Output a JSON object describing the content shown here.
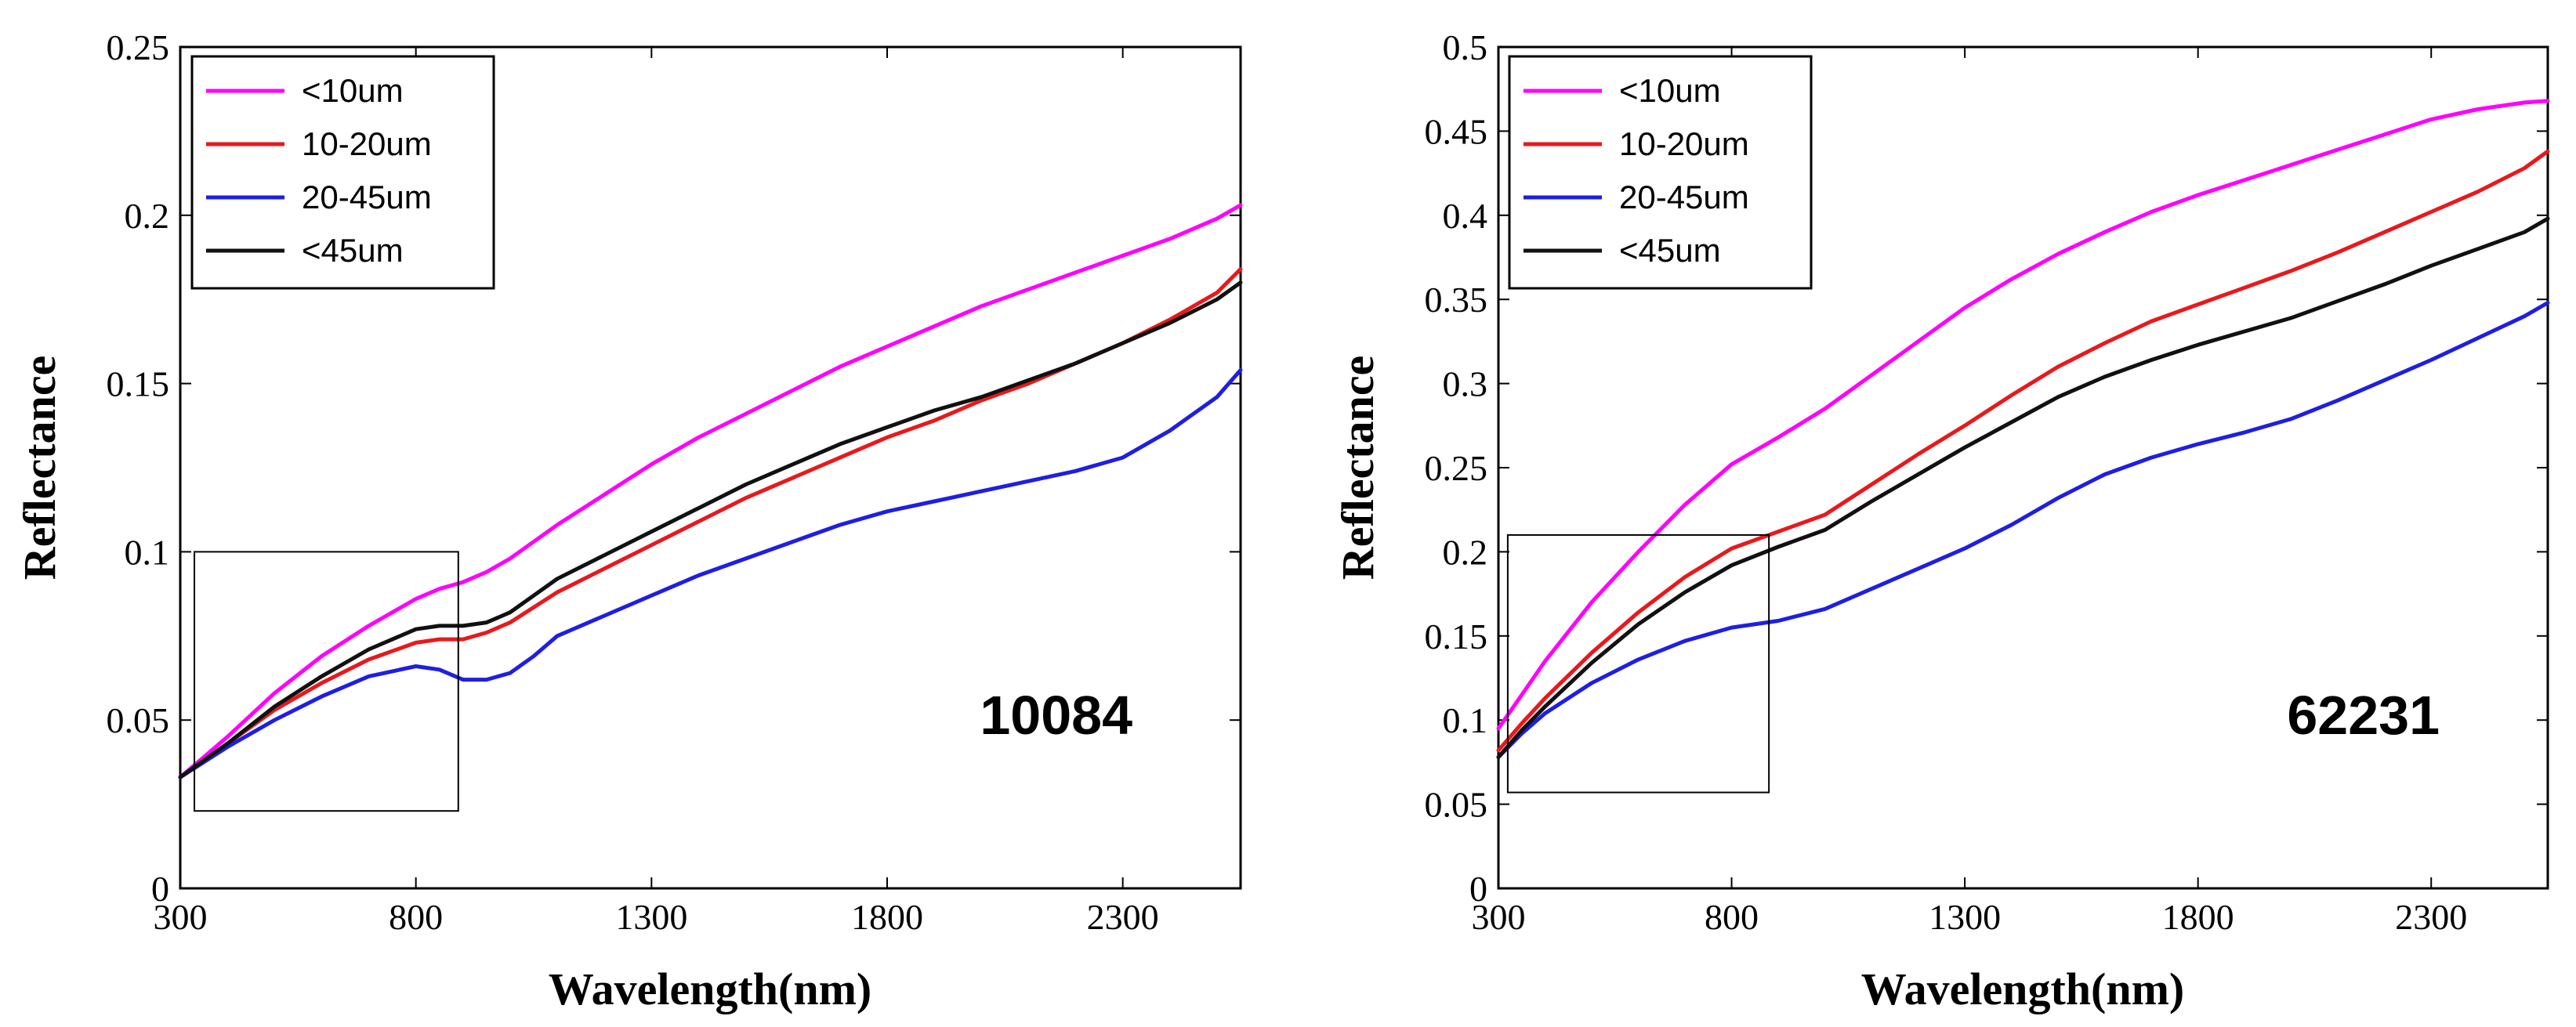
{
  "figure": {
    "title": ""
  },
  "chart_data": [
    {
      "type": "line",
      "title": "",
      "annotation": "10084",
      "xlabel": "Wavelength(nm)",
      "ylabel": "Reflectance",
      "xlim": [
        300,
        2550
      ],
      "ylim": [
        0,
        0.25
      ],
      "xticks": [
        300,
        800,
        1300,
        1800,
        2300
      ],
      "xtick_labels": [
        "300",
        "800",
        "1300",
        "1800",
        "2300"
      ],
      "yticks": [
        0,
        0.05,
        0.1,
        0.15,
        0.2,
        0.25
      ],
      "ytick_labels": [
        "0",
        "0.05",
        "0.1",
        "0.15",
        "0.2",
        "0.25"
      ],
      "legend_position": "top-left",
      "highlight_box": {
        "x": [
          330,
          890
        ],
        "y": [
          0.023,
          0.1
        ]
      },
      "series": [
        {
          "name": "<10um",
          "color": "#ff00ff",
          "x": [
            300,
            400,
            500,
            600,
            700,
            800,
            850,
            900,
            950,
            1000,
            1100,
            1200,
            1300,
            1400,
            1500,
            1600,
            1700,
            1800,
            1900,
            2000,
            2100,
            2200,
            2300,
            2400,
            2500,
            2550
          ],
          "y": [
            0.033,
            0.045,
            0.058,
            0.069,
            0.078,
            0.086,
            0.089,
            0.091,
            0.094,
            0.098,
            0.108,
            0.117,
            0.126,
            0.134,
            0.141,
            0.148,
            0.155,
            0.161,
            0.167,
            0.173,
            0.178,
            0.183,
            0.188,
            0.193,
            0.199,
            0.203
          ]
        },
        {
          "name": "10-20um",
          "color": "#e8191c",
          "x": [
            300,
            400,
            500,
            600,
            700,
            800,
            850,
            900,
            950,
            1000,
            1100,
            1200,
            1300,
            1400,
            1500,
            1600,
            1700,
            1800,
            1900,
            2000,
            2100,
            2200,
            2300,
            2400,
            2500,
            2550
          ],
          "y": [
            0.033,
            0.043,
            0.053,
            0.061,
            0.068,
            0.073,
            0.074,
            0.074,
            0.076,
            0.079,
            0.088,
            0.095,
            0.102,
            0.109,
            0.116,
            0.122,
            0.128,
            0.134,
            0.139,
            0.145,
            0.15,
            0.156,
            0.162,
            0.169,
            0.177,
            0.184
          ]
        },
        {
          "name": "20-45um",
          "color": "#1f1fe0",
          "x": [
            300,
            400,
            500,
            600,
            700,
            800,
            850,
            900,
            950,
            1000,
            1050,
            1100,
            1200,
            1300,
            1400,
            1500,
            1600,
            1700,
            1800,
            1900,
            2000,
            2100,
            2200,
            2300,
            2400,
            2500,
            2550
          ],
          "y": [
            0.033,
            0.042,
            0.05,
            0.057,
            0.063,
            0.066,
            0.065,
            0.062,
            0.062,
            0.064,
            0.069,
            0.075,
            0.081,
            0.087,
            0.093,
            0.098,
            0.103,
            0.108,
            0.112,
            0.115,
            0.118,
            0.121,
            0.124,
            0.128,
            0.136,
            0.146,
            0.154
          ]
        },
        {
          "name": "<45um",
          "color": "#111111",
          "x": [
            300,
            400,
            500,
            600,
            700,
            800,
            850,
            900,
            950,
            1000,
            1100,
            1200,
            1300,
            1400,
            1500,
            1600,
            1700,
            1800,
            1900,
            2000,
            2100,
            2200,
            2300,
            2400,
            2500,
            2550
          ],
          "y": [
            0.033,
            0.043,
            0.054,
            0.063,
            0.071,
            0.077,
            0.078,
            0.078,
            0.079,
            0.082,
            0.092,
            0.099,
            0.106,
            0.113,
            0.12,
            0.126,
            0.132,
            0.137,
            0.142,
            0.146,
            0.151,
            0.156,
            0.162,
            0.168,
            0.175,
            0.18
          ]
        }
      ]
    },
    {
      "type": "line",
      "title": "",
      "annotation": "62231",
      "xlabel": "Wavelength(nm)",
      "ylabel": "Reflectance",
      "xlim": [
        300,
        2550
      ],
      "ylim": [
        0,
        0.5
      ],
      "xticks": [
        300,
        800,
        1300,
        1800,
        2300
      ],
      "xtick_labels": [
        "300",
        "800",
        "1300",
        "1800",
        "2300"
      ],
      "yticks": [
        0,
        0.05,
        0.1,
        0.15,
        0.2,
        0.25,
        0.3,
        0.35,
        0.4,
        0.45,
        0.5
      ],
      "ytick_labels": [
        "0",
        "0.05",
        "0.1",
        "0.15",
        "0.2",
        "0.25",
        "0.3",
        "0.35",
        "0.4",
        "0.45",
        "0.5"
      ],
      "legend_position": "top-left",
      "highlight_box": {
        "x": [
          320,
          880
        ],
        "y": [
          0.057,
          0.21
        ]
      },
      "series": [
        {
          "name": "<10um",
          "color": "#ff00ff",
          "x": [
            300,
            350,
            400,
            500,
            600,
            700,
            800,
            900,
            1000,
            1100,
            1200,
            1300,
            1400,
            1500,
            1600,
            1700,
            1800,
            1900,
            2000,
            2100,
            2200,
            2300,
            2400,
            2500,
            2550
          ],
          "y": [
            0.095,
            0.115,
            0.135,
            0.17,
            0.2,
            0.228,
            0.252,
            0.268,
            0.285,
            0.305,
            0.325,
            0.345,
            0.362,
            0.377,
            0.39,
            0.402,
            0.412,
            0.421,
            0.43,
            0.439,
            0.448,
            0.457,
            0.463,
            0.467,
            0.468
          ]
        },
        {
          "name": "10-20um",
          "color": "#e8191c",
          "x": [
            300,
            350,
            400,
            500,
            600,
            700,
            800,
            900,
            1000,
            1100,
            1200,
            1300,
            1400,
            1500,
            1600,
            1700,
            1800,
            1900,
            2000,
            2100,
            2200,
            2300,
            2400,
            2500,
            2550
          ],
          "y": [
            0.082,
            0.098,
            0.113,
            0.14,
            0.164,
            0.185,
            0.202,
            0.212,
            0.222,
            0.24,
            0.258,
            0.275,
            0.293,
            0.31,
            0.324,
            0.337,
            0.347,
            0.357,
            0.367,
            0.378,
            0.39,
            0.402,
            0.414,
            0.428,
            0.438
          ]
        },
        {
          "name": "20-45um",
          "color": "#1f1fe0",
          "x": [
            300,
            350,
            400,
            500,
            600,
            700,
            800,
            900,
            1000,
            1100,
            1200,
            1300,
            1400,
            1500,
            1600,
            1700,
            1800,
            1900,
            2000,
            2100,
            2200,
            2300,
            2400,
            2500,
            2550
          ],
          "y": [
            0.078,
            0.092,
            0.104,
            0.122,
            0.136,
            0.147,
            0.155,
            0.159,
            0.166,
            0.178,
            0.19,
            0.202,
            0.216,
            0.232,
            0.246,
            0.256,
            0.264,
            0.271,
            0.279,
            0.29,
            0.302,
            0.314,
            0.327,
            0.34,
            0.348
          ]
        },
        {
          "name": "<45um",
          "color": "#111111",
          "x": [
            300,
            350,
            400,
            500,
            600,
            700,
            800,
            900,
            1000,
            1100,
            1200,
            1300,
            1400,
            1500,
            1600,
            1700,
            1800,
            1900,
            2000,
            2100,
            2200,
            2300,
            2400,
            2500,
            2550
          ],
          "y": [
            0.078,
            0.094,
            0.108,
            0.134,
            0.157,
            0.176,
            0.192,
            0.203,
            0.213,
            0.23,
            0.246,
            0.262,
            0.277,
            0.292,
            0.304,
            0.314,
            0.323,
            0.331,
            0.339,
            0.349,
            0.359,
            0.37,
            0.38,
            0.39,
            0.398
          ]
        }
      ]
    }
  ]
}
